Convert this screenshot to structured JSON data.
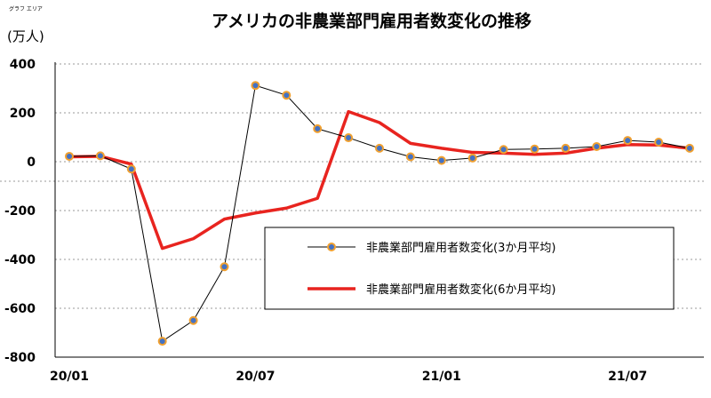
{
  "chart_data": {
    "type": "line",
    "title": "アメリカの非農業部門雇用者数変化の推移",
    "area_tag": "グラフ エリア",
    "unit_label": "(万人)",
    "ylim": [
      -800,
      400
    ],
    "y_ticks": [
      "400",
      "200",
      "0",
      "-200",
      "-400",
      "-600",
      "-800"
    ],
    "y_tick_values": [
      400,
      200,
      0,
      -200,
      -400,
      -600,
      -800
    ],
    "x_tick_labels": [
      {
        "label": "20/01",
        "index": 0
      },
      {
        "label": "20/07",
        "index": 6
      },
      {
        "label": "21/01",
        "index": 12
      },
      {
        "label": "21/07",
        "index": 18
      }
    ],
    "x": [
      "20/01",
      "20/02",
      "20/03",
      "20/04",
      "20/05",
      "20/06",
      "20/07",
      "20/08",
      "20/09",
      "20/10",
      "20/11",
      "20/12",
      "21/01",
      "21/02",
      "21/03",
      "21/04",
      "21/05",
      "21/06",
      "21/07",
      "21/08",
      "21/09"
    ],
    "grid": "horizontal dotted",
    "legend_position": "center-right",
    "series": [
      {
        "name": "非農業部門雇用者数変化(3か月平均)",
        "color": "#000000",
        "marker_fill": "#4472C4",
        "marker_edge": "#F0A030",
        "values": [
          22,
          24,
          -30,
          -735,
          -650,
          -430,
          312,
          272,
          135,
          98,
          55,
          20,
          5,
          15,
          50,
          52,
          55,
          62,
          87,
          80,
          55
        ]
      },
      {
        "name": "非農業部門雇用者数変化(6か月平均)",
        "color": "#E8241F",
        "values": [
          20,
          22,
          -10,
          -355,
          -315,
          -235,
          -210,
          -190,
          -150,
          205,
          160,
          75,
          55,
          38,
          35,
          30,
          35,
          55,
          70,
          68,
          55
        ]
      }
    ]
  }
}
